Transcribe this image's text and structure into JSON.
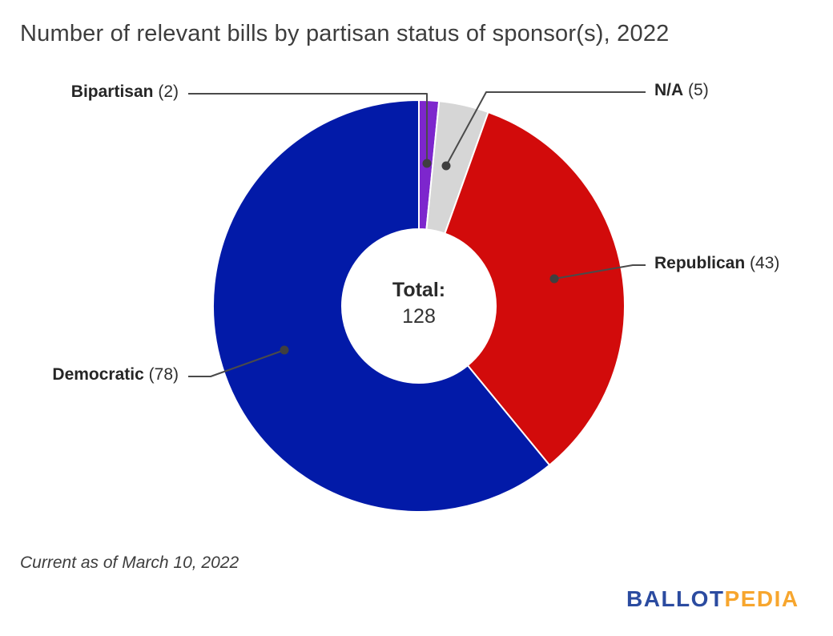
{
  "title": "Number of relevant bills by partisan status of sponsor(s), 2022",
  "footnote": "Current as of March 10, 2022",
  "logo": {
    "text_blue": "BALLOT",
    "text_orange": "PEDIA",
    "color_blue": "#2b4ba0",
    "color_orange": "#f7a62e"
  },
  "chart_data": {
    "type": "pie",
    "subtype": "donut",
    "title": "Number of relevant bills by partisan status of sponsor(s), 2022",
    "direction": "clockwise",
    "start_angle_from_top_deg": 0,
    "total": 128,
    "slices": [
      {
        "label": "Bipartisan",
        "value": 2,
        "display_count": "(2)",
        "color": "#7d26cd"
      },
      {
        "label": "N/A",
        "value": 5,
        "display_count": "(5)",
        "color": "#d6d6d6"
      },
      {
        "label": "Republican",
        "value": 43,
        "display_count": "(43)",
        "color": "#d20b0b"
      },
      {
        "label": "Democratic",
        "value": 78,
        "display_count": "(78)",
        "color": "#021aa8"
      }
    ],
    "center": {
      "label": "Total:",
      "value": "128"
    },
    "legend_position": "callouts",
    "leader_line_color": "#4a4a4a",
    "annotations": [
      "Bipartisan (2)",
      "N/A (5)",
      "Republican (43)",
      "Democratic (78)"
    ]
  }
}
